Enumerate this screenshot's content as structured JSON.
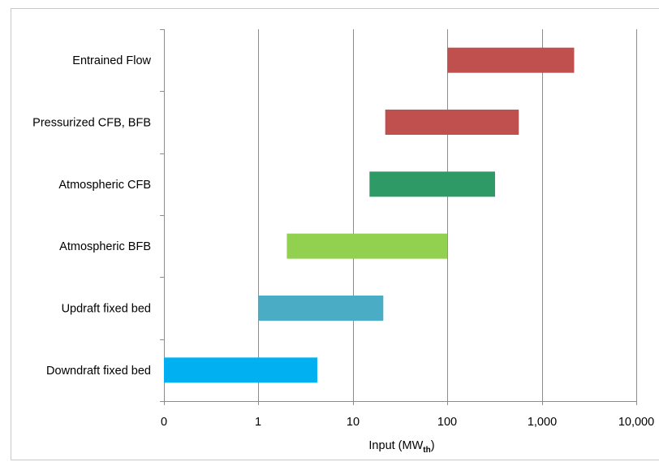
{
  "chart_data": {
    "type": "bar",
    "orientation": "horizontal",
    "title": "",
    "xlabel": "Input (MW",
    "xlabel_subscript": "th",
    "xlabel_suffix": ")",
    "ylabel": "",
    "x_scale": "log (0 at left edge)",
    "x_ticks": [
      "0",
      "1",
      "10",
      "100",
      "1,000",
      "10,000"
    ],
    "x_tick_values": [
      0.1,
      1,
      10,
      100,
      1000,
      10000
    ],
    "xlim": [
      0.1,
      10000
    ],
    "grid": "vertical major gridlines",
    "legend": "none",
    "categories": [
      "Entrained Flow",
      "Pressurized CFB, BFB",
      "Atmospheric CFB",
      "Atmospheric BFB",
      "Updraft fixed bed",
      "Downdraft fixed bed"
    ],
    "ranges": [
      {
        "category": "Entrained Flow",
        "start": 100,
        "end": 2200,
        "color": "#c0504d"
      },
      {
        "category": "Pressurized CFB, BFB",
        "start": 22,
        "end": 570,
        "color": "#c0504d"
      },
      {
        "category": "Atmospheric CFB",
        "start": 15,
        "end": 320,
        "color": "#2e9a66"
      },
      {
        "category": "Atmospheric BFB",
        "start": 2,
        "end": 100,
        "color": "#92d050"
      },
      {
        "category": "Updraft fixed bed",
        "start": 1,
        "end": 21,
        "color": "#4bacc6"
      },
      {
        "category": "Downdraft fixed bed",
        "start": 0.1,
        "end": 4.2,
        "color": "#00b0f0"
      }
    ]
  }
}
